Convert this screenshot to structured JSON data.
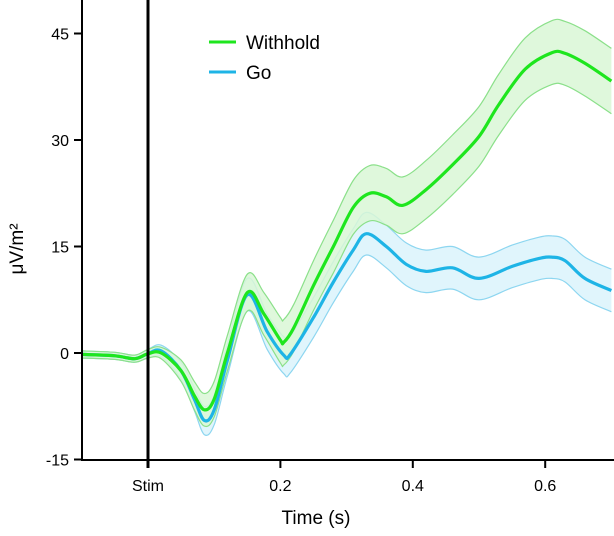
{
  "chart_data": {
    "type": "line",
    "title": "",
    "xlabel": "Time (s)",
    "ylabel": "μV/m²",
    "xlim": [
      -0.1,
      0.7
    ],
    "ylim": [
      -15,
      50
    ],
    "grid": false,
    "legend_position": "top-left",
    "x_ticks": [
      {
        "value": 0,
        "label": "Stim"
      },
      {
        "value": 0.2,
        "label": "0.2"
      },
      {
        "value": 0.4,
        "label": "0.4"
      },
      {
        "value": 0.6,
        "label": "0.6"
      }
    ],
    "y_ticks": [
      {
        "value": -15,
        "label": "-15"
      },
      {
        "value": 0,
        "label": "0"
      },
      {
        "value": 15,
        "label": "15"
      },
      {
        "value": 30,
        "label": "30"
      },
      {
        "value": 45,
        "label": "45"
      }
    ],
    "stim_marker": {
      "x": 0
    },
    "series": [
      {
        "name": "Withhold",
        "color": "#1ee61e",
        "band_color": "#d9f7d6",
        "band_edge_color": "#8be08a",
        "x": [
          -0.1,
          -0.05,
          -0.02,
          0,
          0.02,
          0.05,
          0.07,
          0.085,
          0.1,
          0.12,
          0.15,
          0.175,
          0.2,
          0.205,
          0.22,
          0.25,
          0.28,
          0.31,
          0.335,
          0.36,
          0.385,
          0.42,
          0.46,
          0.5,
          0.53,
          0.57,
          0.61,
          0.63,
          0.66,
          0.7
        ],
        "values": [
          -0.2,
          -0.4,
          -0.8,
          -0.1,
          0,
          -2.5,
          -6,
          -8,
          -6.5,
          0,
          8.5,
          5.5,
          1.8,
          1.5,
          3.5,
          9.5,
          15,
          20.5,
          22.5,
          22,
          20.8,
          23,
          26.5,
          30.5,
          35,
          40,
          42.3,
          42.2,
          40.8,
          38.3
        ],
        "error": [
          0.5,
          0.5,
          0.5,
          0.6,
          0.8,
          1.5,
          2.0,
          2.3,
          2.5,
          2.5,
          2.6,
          3.0,
          3.2,
          3.2,
          3.3,
          3.5,
          3.7,
          3.8,
          3.9,
          4.0,
          4.0,
          4.1,
          4.2,
          4.2,
          4.3,
          4.4,
          4.5,
          4.5,
          4.6,
          4.6
        ]
      },
      {
        "name": "Go",
        "color": "#1eb4e6",
        "band_color": "#daf3fb",
        "band_edge_color": "#8dd6f0",
        "x": [
          -0.1,
          -0.05,
          -0.02,
          0,
          0.02,
          0.05,
          0.07,
          0.085,
          0.1,
          0.12,
          0.15,
          0.18,
          0.205,
          0.215,
          0.25,
          0.28,
          0.31,
          0.33,
          0.36,
          0.39,
          0.42,
          0.46,
          0.5,
          0.55,
          0.59,
          0.61,
          0.63,
          0.66,
          0.7
        ],
        "values": [
          -0.2,
          -0.4,
          -0.8,
          -0.1,
          0.3,
          -2.5,
          -6.5,
          -9.5,
          -8,
          -1,
          8.2,
          3,
          -0.3,
          -0.2,
          5,
          10,
          14.5,
          16.8,
          15,
          12.5,
          11.5,
          12,
          10.5,
          12.2,
          13.3,
          13.5,
          13,
          10.5,
          8.8
        ],
        "error": [
          0.5,
          0.5,
          0.5,
          0.6,
          0.8,
          1.2,
          1.6,
          2.0,
          2.1,
          2.2,
          2.3,
          2.5,
          2.6,
          2.6,
          2.8,
          2.9,
          3.0,
          3.0,
          3.0,
          3.0,
          3.0,
          3.0,
          3.0,
          3.0,
          3.0,
          3.0,
          3.0,
          3.0,
          3.0
        ]
      }
    ]
  }
}
